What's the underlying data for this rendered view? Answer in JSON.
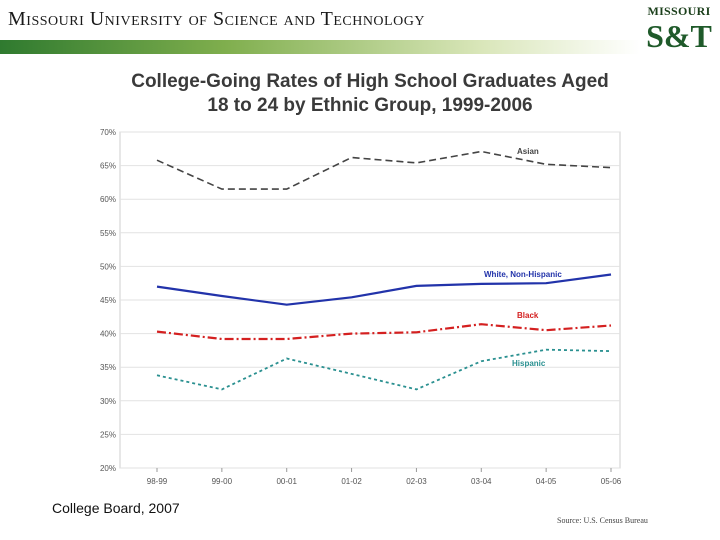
{
  "header": {
    "institution": "Missouri University of Science and Technology",
    "logo_top": "MISSOURI",
    "logo_main": "S&T"
  },
  "credit": "College Board, 2007",
  "source": "Source: U.S. Census Bureau",
  "colors": {
    "Asian": "#444444",
    "White, Non-Hispanic": "#2233aa",
    "Black": "#d42020",
    "Hispanic": "#2a9090"
  },
  "chart_data": {
    "type": "line",
    "title": "College-Going Rates of High School Graduates Aged 18 to 24 by Ethnic Group, 1999-2006",
    "categories": [
      "98-99",
      "99-00",
      "00-01",
      "01-02",
      "02-03",
      "03-04",
      "04-05",
      "05-06"
    ],
    "ylim": [
      20,
      70
    ],
    "yticks": [
      "20%",
      "25%",
      "30%",
      "35%",
      "40%",
      "45%",
      "50%",
      "55%",
      "60%",
      "65%",
      "70%"
    ],
    "grid": true,
    "series": [
      {
        "name": "Asian",
        "values": [
          65.8,
          61.5,
          61.5,
          66.2,
          65.4,
          67.1,
          65.2,
          64.7
        ]
      },
      {
        "name": "White, Non-Hispanic",
        "values": [
          47.0,
          45.6,
          44.3,
          45.4,
          47.1,
          47.4,
          47.5,
          48.8
        ]
      },
      {
        "name": "Black",
        "values": [
          40.3,
          39.2,
          39.2,
          40.0,
          40.2,
          41.4,
          40.5,
          41.2
        ]
      },
      {
        "name": "Hispanic",
        "values": [
          33.8,
          31.7,
          36.3,
          34.0,
          31.7,
          35.9,
          37.6,
          37.4
        ]
      }
    ]
  }
}
